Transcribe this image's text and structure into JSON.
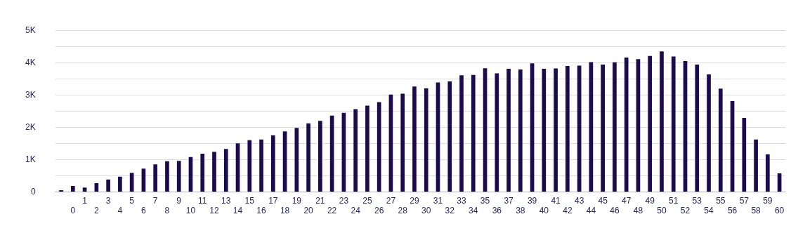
{
  "chart_data": {
    "type": "bar",
    "categories": [
      null,
      "0",
      "1",
      "2",
      "3",
      "4",
      "5",
      "6",
      "7",
      "8",
      "9",
      "10",
      "11",
      "12",
      "13",
      "14",
      "15",
      "16",
      "17",
      "18",
      "19",
      "20",
      "21",
      "22",
      "23",
      "24",
      "25",
      "26",
      "27",
      "28",
      "29",
      "30",
      "31",
      "32",
      "33",
      "34",
      "35",
      "36",
      "37",
      "38",
      "39",
      "40",
      "41",
      "42",
      "43",
      "44",
      "45",
      "46",
      "47",
      "48",
      "49",
      "50",
      "51",
      "52",
      "53",
      "54",
      "55",
      "56",
      "57",
      "58",
      "59",
      "60"
    ],
    "values": [
      40,
      170,
      120,
      260,
      370,
      460,
      580,
      710,
      840,
      940,
      950,
      1070,
      1170,
      1230,
      1320,
      1490,
      1590,
      1610,
      1740,
      1860,
      1970,
      2110,
      2190,
      2350,
      2440,
      2550,
      2660,
      2770,
      3000,
      3030,
      3250,
      3200,
      3380,
      3410,
      3600,
      3610,
      3820,
      3660,
      3800,
      3780,
      3970,
      3800,
      3810,
      3890,
      3900,
      4010,
      3930,
      4000,
      4150,
      4100,
      4200,
      4340,
      4180,
      4040,
      3930,
      3630,
      3190,
      2800,
      2280,
      1610,
      1150,
      560
    ],
    "color": "#1b0b4d",
    "ylim": [
      0,
      5000
    ],
    "yticks": [
      {
        "value": 0,
        "label": "0"
      },
      {
        "value": 500,
        "label": null
      },
      {
        "value": 1000,
        "label": "1K"
      },
      {
        "value": 1500,
        "label": null
      },
      {
        "value": 2000,
        "label": "2K"
      },
      {
        "value": 2500,
        "label": null
      },
      {
        "value": 3000,
        "label": "3K"
      },
      {
        "value": 3500,
        "label": null
      },
      {
        "value": 4000,
        "label": "4K"
      },
      {
        "value": 4500,
        "label": null
      },
      {
        "value": 5000,
        "label": "5K"
      }
    ],
    "grid": "y"
  }
}
